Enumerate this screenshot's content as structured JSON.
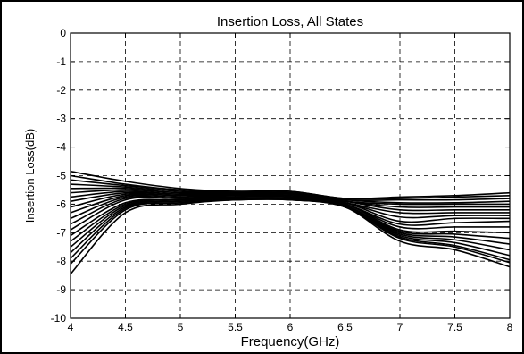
{
  "chart_data": {
    "type": "line",
    "title": "Insertion Loss, All States",
    "xlabel": "Frequency(GHz)",
    "ylabel": "Insertion Loss(dB)",
    "xlim": [
      4,
      8
    ],
    "ylim": [
      -10,
      0
    ],
    "xticks": [
      4,
      4.5,
      5,
      5.5,
      6,
      6.5,
      7,
      7.5,
      8
    ],
    "xtick_labels": [
      "4",
      "4.5",
      "5",
      "5.5",
      "6",
      "6.5",
      "7",
      "7.5",
      "8"
    ],
    "yticks": [
      0,
      -1,
      -2,
      -3,
      -4,
      -5,
      -6,
      -7,
      -8,
      -9,
      -10
    ],
    "ytick_labels": [
      "0",
      "-1",
      "-2",
      "-3",
      "-4",
      "-5",
      "-6",
      "-7",
      "-8",
      "-9",
      "-10"
    ],
    "grid": true,
    "line_color": "#000000",
    "x": [
      4.0,
      4.5,
      5.0,
      5.5,
      6.0,
      6.5,
      7.0,
      7.5,
      8.0
    ],
    "series": [
      {
        "values": [
          -4.85,
          -5.2,
          -5.45,
          -5.55,
          -5.55,
          -5.8,
          -5.75,
          -5.7,
          -5.6
        ]
      },
      {
        "values": [
          -5.0,
          -5.3,
          -5.5,
          -5.55,
          -5.55,
          -5.8,
          -5.8,
          -5.75,
          -5.7
        ]
      },
      {
        "values": [
          -5.15,
          -5.35,
          -5.5,
          -5.6,
          -5.6,
          -5.85,
          -5.85,
          -5.85,
          -5.8
        ]
      },
      {
        "values": [
          -5.3,
          -5.4,
          -5.55,
          -5.6,
          -5.6,
          -5.85,
          -5.95,
          -5.95,
          -5.9
        ]
      },
      {
        "values": [
          -5.45,
          -5.45,
          -5.6,
          -5.6,
          -5.6,
          -5.9,
          -6.0,
          -6.0,
          -6.0
        ]
      },
      {
        "values": [
          -5.6,
          -5.5,
          -5.6,
          -5.6,
          -5.65,
          -5.9,
          -6.1,
          -6.1,
          -6.1
        ]
      },
      {
        "values": [
          -5.75,
          -5.55,
          -5.65,
          -5.65,
          -5.65,
          -5.9,
          -6.2,
          -6.2,
          -6.2
        ]
      },
      {
        "values": [
          -5.9,
          -5.6,
          -5.65,
          -5.65,
          -5.65,
          -5.95,
          -6.3,
          -6.3,
          -6.3
        ]
      },
      {
        "values": [
          -6.1,
          -5.65,
          -5.7,
          -5.65,
          -5.7,
          -5.95,
          -6.45,
          -6.4,
          -6.4
        ]
      },
      {
        "values": [
          -6.3,
          -5.7,
          -5.7,
          -5.7,
          -5.7,
          -5.95,
          -6.6,
          -6.5,
          -6.5
        ]
      },
      {
        "values": [
          -6.5,
          -5.75,
          -5.75,
          -5.7,
          -5.7,
          -6.0,
          -6.7,
          -6.65,
          -6.6
        ]
      },
      {
        "values": [
          -6.7,
          -5.8,
          -5.8,
          -5.7,
          -5.75,
          -6.0,
          -6.8,
          -6.8,
          -6.8
        ]
      },
      {
        "values": [
          -6.9,
          -5.85,
          -5.8,
          -5.75,
          -5.75,
          -6.0,
          -6.9,
          -6.95,
          -7.0
        ]
      },
      {
        "values": [
          -7.1,
          -5.95,
          -5.85,
          -5.75,
          -5.75,
          -6.05,
          -6.95,
          -7.05,
          -7.2
        ]
      },
      {
        "values": [
          -7.3,
          -6.0,
          -5.85,
          -5.8,
          -5.8,
          -6.05,
          -7.0,
          -7.15,
          -7.4
        ]
      },
      {
        "values": [
          -7.5,
          -6.05,
          -5.9,
          -5.8,
          -5.8,
          -6.05,
          -7.05,
          -7.25,
          -7.6
        ]
      },
      {
        "values": [
          -7.7,
          -6.1,
          -5.9,
          -5.8,
          -5.8,
          -6.05,
          -7.1,
          -7.35,
          -7.8
        ]
      },
      {
        "values": [
          -7.9,
          -6.15,
          -5.95,
          -5.85,
          -5.85,
          -6.1,
          -7.15,
          -7.45,
          -7.95
        ]
      },
      {
        "values": [
          -8.1,
          -6.2,
          -5.95,
          -5.85,
          -5.85,
          -6.1,
          -7.2,
          -7.5,
          -8.05
        ]
      },
      {
        "values": [
          -8.45,
          -6.3,
          -6.0,
          -5.85,
          -5.85,
          -6.1,
          -7.3,
          -7.6,
          -8.2
        ]
      }
    ]
  }
}
